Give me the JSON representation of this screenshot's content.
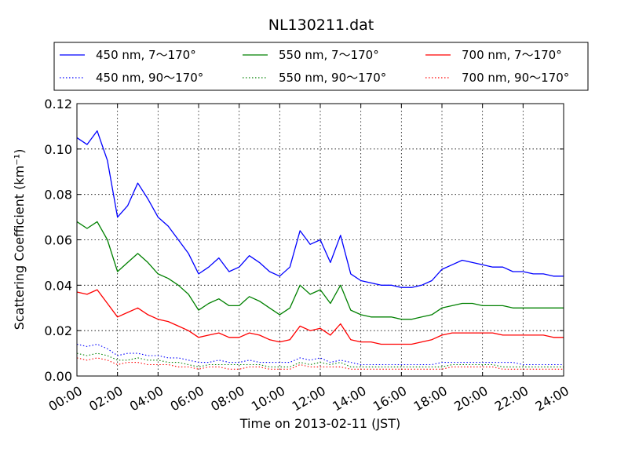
{
  "chart_data": {
    "type": "line",
    "title": "NL130211.dat",
    "xlabel": "Time on 2013-02-11 (JST)",
    "ylabel": "Scattering Coefficient (km⁻¹)",
    "xlim": [
      0,
      24
    ],
    "ylim": [
      0,
      0.12
    ],
    "xticks": [
      "00:00",
      "02:00",
      "04:00",
      "06:00",
      "08:00",
      "10:00",
      "12:00",
      "14:00",
      "16:00",
      "18:00",
      "20:00",
      "22:00",
      "24:00"
    ],
    "yticks": [
      "0.00",
      "0.02",
      "0.04",
      "0.06",
      "0.08",
      "0.10",
      "0.12"
    ],
    "grid": true,
    "legend_position": "top, above plot, 3 columns",
    "x_hours": [
      0,
      0.5,
      1,
      1.5,
      2,
      2.5,
      3,
      3.5,
      4,
      4.5,
      5,
      5.5,
      6,
      6.5,
      7,
      7.5,
      8,
      8.5,
      9,
      9.5,
      10,
      10.5,
      11,
      11.5,
      12,
      12.5,
      13,
      13.5,
      14,
      14.5,
      15,
      15.5,
      16,
      16.5,
      17,
      17.5,
      18,
      18.5,
      19,
      19.5,
      20,
      20.5,
      21,
      21.5,
      22,
      22.5,
      23,
      23.5,
      24
    ],
    "series": [
      {
        "name": "450 nm, 7～170°",
        "color": "#0000ff",
        "style": "solid",
        "values": [
          0.105,
          0.102,
          0.108,
          0.095,
          0.07,
          0.075,
          0.085,
          0.078,
          0.07,
          0.066,
          0.06,
          0.054,
          0.045,
          0.048,
          0.052,
          0.046,
          0.048,
          0.053,
          0.05,
          0.046,
          0.044,
          0.048,
          0.064,
          0.058,
          0.06,
          0.05,
          0.062,
          0.045,
          0.042,
          0.041,
          0.04,
          0.04,
          0.039,
          0.039,
          0.04,
          0.042,
          0.047,
          0.049,
          0.051,
          0.05,
          0.049,
          0.048,
          0.048,
          0.046,
          0.046,
          0.045,
          0.045,
          0.044,
          0.044
        ]
      },
      {
        "name": "550 nm, 7～170°",
        "color": "#008000",
        "style": "solid",
        "values": [
          0.068,
          0.065,
          0.068,
          0.06,
          0.046,
          0.05,
          0.054,
          0.05,
          0.045,
          0.043,
          0.04,
          0.036,
          0.029,
          0.032,
          0.034,
          0.031,
          0.031,
          0.035,
          0.033,
          0.03,
          0.027,
          0.03,
          0.04,
          0.036,
          0.038,
          0.032,
          0.04,
          0.029,
          0.027,
          0.026,
          0.026,
          0.026,
          0.025,
          0.025,
          0.026,
          0.027,
          0.03,
          0.031,
          0.032,
          0.032,
          0.031,
          0.031,
          0.031,
          0.03,
          0.03,
          0.03,
          0.03,
          0.03,
          0.03
        ]
      },
      {
        "name": "700 nm, 7～170°",
        "color": "#ff0000",
        "style": "solid",
        "values": [
          0.037,
          0.036,
          0.038,
          0.032,
          0.026,
          0.028,
          0.03,
          0.027,
          0.025,
          0.024,
          0.022,
          0.02,
          0.017,
          0.018,
          0.019,
          0.017,
          0.017,
          0.019,
          0.018,
          0.016,
          0.015,
          0.016,
          0.022,
          0.02,
          0.021,
          0.018,
          0.023,
          0.016,
          0.015,
          0.015,
          0.014,
          0.014,
          0.014,
          0.014,
          0.015,
          0.016,
          0.018,
          0.019,
          0.019,
          0.019,
          0.019,
          0.019,
          0.018,
          0.018,
          0.018,
          0.018,
          0.018,
          0.017,
          0.017
        ]
      },
      {
        "name": "450 nm, 90～170°",
        "color": "#0000ff",
        "style": "dotted",
        "values": [
          0.014,
          0.013,
          0.014,
          0.012,
          0.009,
          0.01,
          0.01,
          0.009,
          0.009,
          0.008,
          0.008,
          0.007,
          0.006,
          0.006,
          0.007,
          0.006,
          0.006,
          0.007,
          0.006,
          0.006,
          0.006,
          0.006,
          0.008,
          0.007,
          0.008,
          0.006,
          0.007,
          0.006,
          0.005,
          0.005,
          0.005,
          0.005,
          0.005,
          0.005,
          0.005,
          0.005,
          0.006,
          0.006,
          0.006,
          0.006,
          0.006,
          0.006,
          0.006,
          0.006,
          0.005,
          0.005,
          0.005,
          0.005,
          0.005
        ]
      },
      {
        "name": "550 nm, 90～170°",
        "color": "#008000",
        "style": "dotted",
        "values": [
          0.01,
          0.009,
          0.01,
          0.009,
          0.007,
          0.007,
          0.008,
          0.007,
          0.007,
          0.006,
          0.006,
          0.005,
          0.004,
          0.005,
          0.005,
          0.005,
          0.005,
          0.005,
          0.005,
          0.004,
          0.004,
          0.004,
          0.006,
          0.005,
          0.006,
          0.005,
          0.006,
          0.004,
          0.004,
          0.004,
          0.004,
          0.004,
          0.004,
          0.004,
          0.004,
          0.004,
          0.004,
          0.005,
          0.005,
          0.005,
          0.005,
          0.005,
          0.004,
          0.004,
          0.004,
          0.004,
          0.004,
          0.004,
          0.004
        ]
      },
      {
        "name": "700 nm, 90～170°",
        "color": "#ff0000",
        "style": "dotted",
        "values": [
          0.008,
          0.007,
          0.008,
          0.007,
          0.005,
          0.006,
          0.006,
          0.005,
          0.005,
          0.005,
          0.004,
          0.004,
          0.003,
          0.004,
          0.004,
          0.003,
          0.003,
          0.004,
          0.004,
          0.003,
          0.003,
          0.003,
          0.005,
          0.004,
          0.004,
          0.004,
          0.004,
          0.003,
          0.003,
          0.003,
          0.003,
          0.003,
          0.003,
          0.003,
          0.003,
          0.003,
          0.003,
          0.004,
          0.004,
          0.004,
          0.004,
          0.004,
          0.003,
          0.003,
          0.003,
          0.003,
          0.003,
          0.003,
          0.003
        ]
      }
    ]
  }
}
